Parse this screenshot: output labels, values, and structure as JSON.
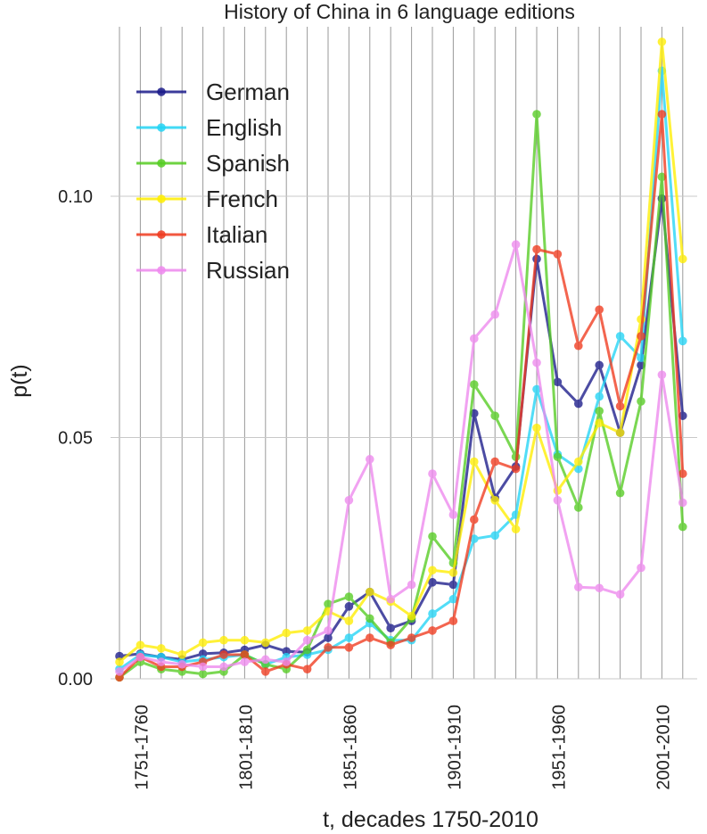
{
  "chart_data": {
    "type": "line",
    "title": "History of China in 6 language editions",
    "xlabel": "t, decades 1750-2010",
    "ylabel": "p(t)",
    "x_tick_labels": [
      "1751-1760",
      "1801-1810",
      "1851-1860",
      "1901-1910",
      "1951-1960",
      "2001-2010"
    ],
    "x_tick_index": [
      1,
      6,
      11,
      16,
      21,
      26
    ],
    "y_ticks": [
      0.0,
      0.05,
      0.1
    ],
    "y_tick_labels": [
      "0.00",
      "0.05",
      "0.10"
    ],
    "ylim": [
      0,
      0.13
    ],
    "decade_count": 28,
    "grid": "vertical lines at every decade, horizontal lines at y ticks",
    "legend_position": "top-left",
    "series": [
      {
        "name": "German",
        "color": "#1a1a8a",
        "values": [
          0.0047,
          0.0052,
          0.0045,
          0.004,
          0.0052,
          0.0054,
          0.006,
          0.007,
          0.0057,
          0.0055,
          0.0085,
          0.015,
          0.018,
          0.0105,
          0.012,
          0.02,
          0.0195,
          0.055,
          0.0375,
          0.044,
          0.087,
          0.0615,
          0.057,
          0.065,
          0.051,
          0.065,
          0.0995,
          0.0545
        ]
      },
      {
        "name": "English",
        "color": "#22d4f5",
        "values": [
          0.002,
          0.005,
          0.0045,
          0.0035,
          0.004,
          0.0045,
          0.005,
          0.003,
          0.0045,
          0.005,
          0.006,
          0.0085,
          0.0115,
          0.008,
          0.008,
          0.0135,
          0.0165,
          0.029,
          0.0297,
          0.034,
          0.06,
          0.0465,
          0.0435,
          0.0585,
          0.071,
          0.0665,
          0.126,
          0.07
        ]
      },
      {
        "name": "Spanish",
        "color": "#55cc22",
        "values": [
          0.0003,
          0.0035,
          0.002,
          0.0015,
          0.001,
          0.0015,
          0.005,
          0.003,
          0.002,
          0.006,
          0.0155,
          0.017,
          0.0125,
          0.0075,
          0.0125,
          0.0295,
          0.024,
          0.061,
          0.0545,
          0.046,
          0.117,
          0.046,
          0.0355,
          0.0555,
          0.0385,
          0.0575,
          0.104,
          0.0315
        ]
      },
      {
        "name": "French",
        "color": "#ffee00",
        "values": [
          0.0035,
          0.007,
          0.0063,
          0.005,
          0.0075,
          0.008,
          0.008,
          0.0075,
          0.0095,
          0.01,
          0.014,
          0.012,
          0.018,
          0.016,
          0.013,
          0.0225,
          0.022,
          0.045,
          0.037,
          0.031,
          0.052,
          0.039,
          0.045,
          0.053,
          0.051,
          0.0745,
          0.132,
          0.087
        ]
      },
      {
        "name": "Italian",
        "color": "#f03a1e",
        "values": [
          0.0003,
          0.0045,
          0.0025,
          0.0025,
          0.0035,
          0.005,
          0.005,
          0.0015,
          0.003,
          0.002,
          0.0065,
          0.0065,
          0.0085,
          0.007,
          0.0085,
          0.01,
          0.012,
          0.033,
          0.045,
          0.0435,
          0.089,
          0.088,
          0.069,
          0.0765,
          0.0565,
          0.071,
          0.117,
          0.0425
        ]
      },
      {
        "name": "Russian",
        "color": "#ee88ee",
        "values": [
          0.0015,
          0.0045,
          0.0035,
          0.003,
          0.0025,
          0.0025,
          0.0035,
          0.004,
          0.0035,
          0.008,
          0.01,
          0.037,
          0.0455,
          0.0165,
          0.0195,
          0.0425,
          0.034,
          0.0705,
          0.0755,
          0.09,
          0.0655,
          0.037,
          0.019,
          0.0188,
          0.0175,
          0.023,
          0.063,
          0.0365
        ]
      }
    ]
  }
}
